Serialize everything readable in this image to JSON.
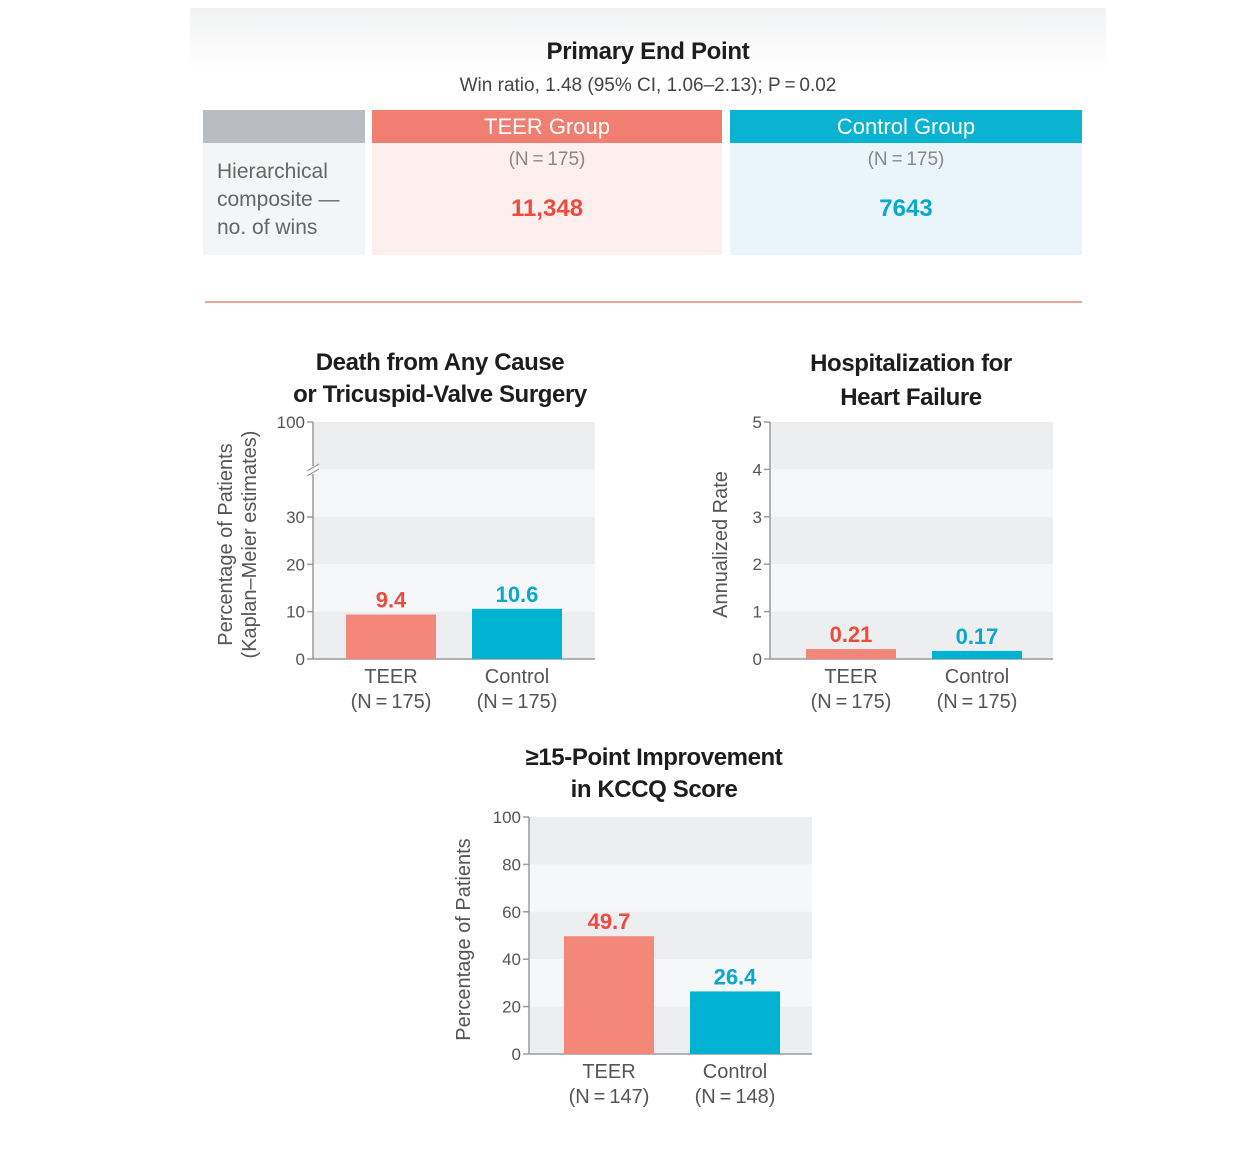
{
  "primary": {
    "title": "Primary End Point",
    "subtitle": "Win ratio, 1.48 (95% CI, 1.06–2.13); P = 0.02",
    "row_label": "Hierarchical composite — no. of wins",
    "teer": {
      "header": "TEER Group",
      "n": "(N = 175)",
      "wins": "11,348"
    },
    "control": {
      "header": "Control Group",
      "n": "(N = 175)",
      "wins": "7643"
    }
  },
  "colors": {
    "teer": "#f3877a",
    "control": "#00b3d3",
    "teer_text": "#ee4a3e",
    "control_text": "#0aa8cb"
  },
  "chart_data": [
    {
      "type": "bar",
      "title": "Death from Any Cause or Tricuspid-Valve Surgery",
      "title_lines": [
        "Death from Any Cause",
        "or Tricuspid-Valve Surgery"
      ],
      "ylabel_lines": [
        "Percentage of Patients",
        "(Kaplan–Meier estimates)"
      ],
      "categories": [
        "TEER",
        "Control"
      ],
      "category_n": [
        "(N = 175)",
        "(N = 175)"
      ],
      "values": [
        9.4,
        10.6
      ],
      "value_labels": [
        "9.4",
        "10.6"
      ],
      "yticks": [
        0,
        10,
        20,
        30,
        100
      ],
      "ylim": [
        0,
        100
      ],
      "axis_break": true
    },
    {
      "type": "bar",
      "title": "Hospitalization for Heart Failure",
      "title_lines": [
        "Hospitalization for",
        "Heart Failure"
      ],
      "ylabel_lines": [
        "Annualized Rate"
      ],
      "categories": [
        "TEER",
        "Control"
      ],
      "category_n": [
        "(N = 175)",
        "(N = 175)"
      ],
      "values": [
        0.21,
        0.17
      ],
      "value_labels": [
        "0.21",
        "0.17"
      ],
      "yticks": [
        0,
        1,
        2,
        3,
        4,
        5
      ],
      "ylim": [
        0,
        5
      ],
      "axis_break": false
    },
    {
      "type": "bar",
      "title": "≥15-Point Improvement in KCCQ Score",
      "title_lines": [
        "≥15-Point Improvement",
        "in KCCQ Score"
      ],
      "ylabel_lines": [
        "Percentage of Patients"
      ],
      "categories": [
        "TEER",
        "Control"
      ],
      "category_n": [
        "(N = 147)",
        "(N = 148)"
      ],
      "values": [
        49.7,
        26.4
      ],
      "value_labels": [
        "49.7",
        "26.4"
      ],
      "yticks": [
        0,
        20,
        40,
        60,
        80,
        100
      ],
      "ylim": [
        0,
        100
      ],
      "axis_break": false
    }
  ]
}
